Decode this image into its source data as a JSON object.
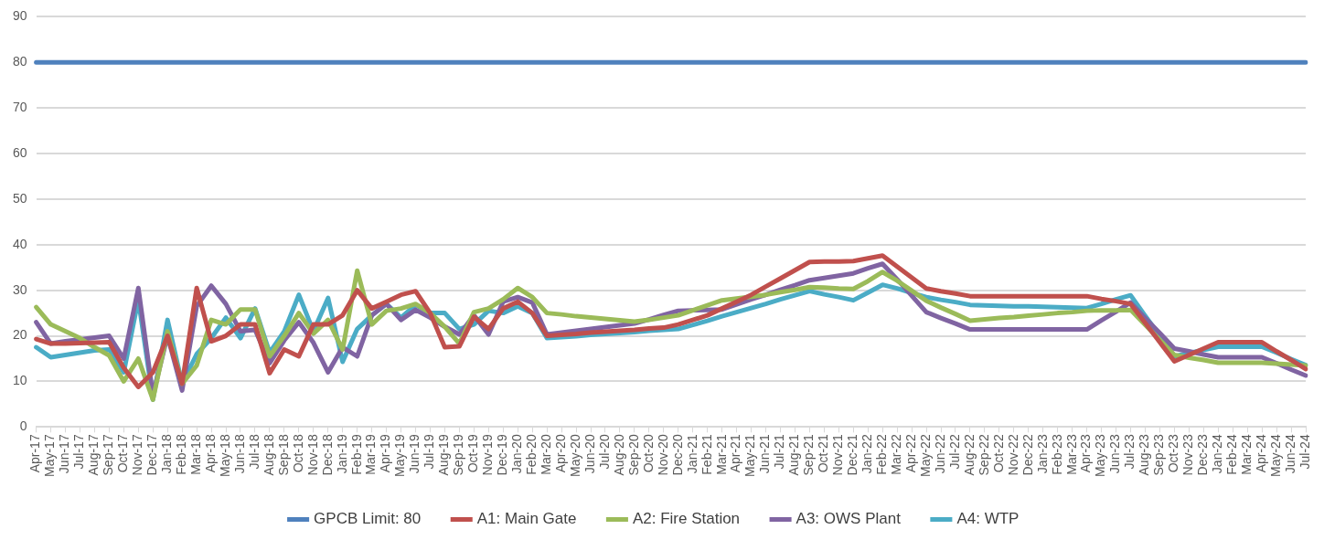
{
  "chart_data": {
    "type": "line",
    "categories": [
      "Apr-17",
      "May-17",
      "Jun-17",
      "Jul-17",
      "Aug-17",
      "Sep-17",
      "Oct-17",
      "Nov-17",
      "Dec-17",
      "Jan-18",
      "Feb-18",
      "Mar-18",
      "Apr-18",
      "May-18",
      "Jun-18",
      "Jul-18",
      "Aug-18",
      "Sep-18",
      "Oct-18",
      "Nov-18",
      "Dec-18",
      "Jan-19",
      "Feb-19",
      "Mar-19",
      "Apr-19",
      "May-19",
      "Jun-19",
      "Jul-19",
      "Aug-19",
      "Sep-19",
      "Oct-19",
      "Nov-19",
      "Dec-19",
      "Jan-20",
      "Feb-20",
      "Mar-20",
      "Apr-20",
      "May-20",
      "Jun-20",
      "Jul-20",
      "Aug-20",
      "Sep-20",
      "Oct-20",
      "Nov-20",
      "Dec-20",
      "Jan-21",
      "Feb-21",
      "Mar-21",
      "Apr-21",
      "May-21",
      "Jun-21",
      "Jul-21",
      "Aug-21",
      "Sep-21",
      "Oct-21",
      "Nov-21",
      "Dec-21",
      "Jan-22",
      "Feb-22",
      "Mar-22",
      "Apr-22",
      "May-22",
      "Jun-22",
      "Jul-22",
      "Aug-22",
      "Sep-22",
      "Oct-22",
      "Nov-22",
      "Dec-22",
      "Jan-23",
      "Feb-23",
      "Mar-23",
      "Apr-23",
      "May-23",
      "Jun-23",
      "Jul-23",
      "Aug-23",
      "Sep-23",
      "Oct-23",
      "Nov-23",
      "Dec-23",
      "Jan-24",
      "Feb-24",
      "Mar-24",
      "Apr-24",
      "May-24",
      "Jun-24",
      "Jul-24"
    ],
    "series": [
      {
        "name": "GPCB Limit: 80",
        "color": "#4f81bd",
        "values": [
          80,
          80,
          80,
          80,
          80,
          80,
          80,
          80,
          80,
          80,
          80,
          80,
          80,
          80,
          80,
          80,
          80,
          80,
          80,
          80,
          80,
          80,
          80,
          80,
          80,
          80,
          80,
          80,
          80,
          80,
          80,
          80,
          80,
          80,
          80,
          80,
          80,
          80,
          80,
          80,
          80,
          80,
          80,
          80,
          80,
          80,
          80,
          80,
          80,
          80,
          80,
          80,
          80,
          80,
          80,
          80,
          80,
          80,
          80,
          80,
          80,
          80,
          80,
          80,
          80,
          80,
          80,
          80,
          80,
          80,
          80,
          80,
          80,
          80,
          80,
          80,
          80,
          80,
          80,
          80,
          80,
          80,
          80,
          80,
          80,
          80,
          80,
          80
        ]
      },
      {
        "name": "A1: Main Gate",
        "color": "#c0504d",
        "values": [
          19.3,
          18.3,
          18.3,
          18.4,
          18.5,
          18.6,
          13,
          8.8,
          12,
          20,
          9.5,
          30.5,
          18.8,
          20,
          22.5,
          22.5,
          11.8,
          17,
          15.5,
          22.5,
          22.5,
          24.5,
          30,
          26,
          27.5,
          29,
          29.8,
          25,
          17.5,
          17.7,
          24.2,
          21.5,
          26,
          27.5,
          25,
          20,
          20.2,
          20.4,
          20.7,
          20.9,
          21.1,
          21.3,
          21.6,
          21.8,
          22.5,
          23.5,
          24.5,
          26,
          27.5,
          29,
          30.8,
          32.6,
          34.4,
          36.2,
          36.3,
          36.3,
          36.4,
          37,
          37.6,
          35.2,
          32.8,
          30.4,
          29.8,
          29.3,
          28.7,
          28.7,
          28.7,
          28.7,
          28.7,
          28.7,
          28.7,
          28.7,
          28.7,
          28.1,
          27.6,
          27,
          22.8,
          18.6,
          14.4,
          15.8,
          17.2,
          18.6,
          18.6,
          18.6,
          18.6,
          16.6,
          14.7,
          12.7
        ]
      },
      {
        "name": "A2: Fire Station",
        "color": "#9bbb59",
        "values": [
          26.3,
          22.5,
          21,
          19.5,
          17.5,
          15.7,
          10,
          15,
          6,
          21,
          9.5,
          13.5,
          23.5,
          22.5,
          25.8,
          25.8,
          15.5,
          20,
          25,
          20.5,
          23.5,
          17,
          34.3,
          22.5,
          25.5,
          26,
          27,
          25,
          22,
          18.3,
          25.2,
          26,
          28,
          30.5,
          28.5,
          25,
          24.7,
          24.3,
          24,
          23.7,
          23.4,
          23.1,
          23.5,
          24,
          24.5,
          25.6,
          26.7,
          27.8,
          28.2,
          28.6,
          29,
          29.6,
          30.1,
          30.7,
          30.6,
          30.4,
          30.3,
          32,
          34,
          32.1,
          29.9,
          27.7,
          26.2,
          24.8,
          23.3,
          23.6,
          23.9,
          24.1,
          24.4,
          24.7,
          25,
          25.2,
          25.5,
          25.6,
          25.6,
          25.7,
          22.4,
          19.1,
          15.8,
          15.2,
          14.7,
          14.1,
          14.1,
          14.1,
          14.1,
          13.9,
          13.7,
          13.5
        ]
      },
      {
        "name": "A3: OWS Plant",
        "color": "#8064a2",
        "values": [
          23,
          18.3,
          18.8,
          19.2,
          19.6,
          20,
          15,
          30.5,
          7,
          20,
          8,
          26.5,
          31,
          27,
          21,
          21.3,
          14,
          19,
          23,
          18.5,
          12,
          17.5,
          15.5,
          24.5,
          27,
          23.5,
          25.7,
          24,
          22,
          20.3,
          24.5,
          20.3,
          27.5,
          28.5,
          27.3,
          20.3,
          20.7,
          21.1,
          21.5,
          21.9,
          22.3,
          22.7,
          23.6,
          24.6,
          25.5,
          25.6,
          25.7,
          25.8,
          26.9,
          28,
          29,
          30.1,
          31.1,
          32.2,
          32.7,
          33.2,
          33.7,
          34.8,
          35.8,
          32.4,
          28.8,
          25.2,
          23.9,
          22.7,
          21.4,
          21.4,
          21.4,
          21.4,
          21.4,
          21.4,
          21.4,
          21.4,
          21.4,
          23.4,
          25.3,
          27.3,
          23.9,
          20.6,
          17.2,
          16.6,
          15.9,
          15.3,
          15.3,
          15.3,
          15.3,
          14,
          12.6,
          11.3
        ]
      },
      {
        "name": "A4: WTP",
        "color": "#4bacc6",
        "values": [
          17.5,
          15.3,
          15.8,
          16.3,
          16.8,
          17,
          12,
          28,
          6,
          23.5,
          9.5,
          16,
          19.5,
          24,
          19.5,
          26,
          16.3,
          21,
          29,
          21,
          28.3,
          14.3,
          21.5,
          24.5,
          27,
          24,
          26.8,
          25,
          25,
          21.5,
          22.5,
          25.5,
          25,
          26.5,
          25,
          19.5,
          19.7,
          19.9,
          20.2,
          20.4,
          20.6,
          20.8,
          21.1,
          21.3,
          21.5,
          22.4,
          23.3,
          24.3,
          25.2,
          26.1,
          27,
          28,
          28.9,
          29.8,
          29.1,
          28.5,
          27.8,
          29.5,
          31.2,
          30.4,
          29.4,
          28.5,
          27.9,
          27.4,
          26.8,
          26.7,
          26.6,
          26.5,
          26.5,
          26.4,
          26.3,
          26.2,
          26.1,
          27,
          28,
          28.9,
          24.4,
          20,
          15.5,
          16.2,
          16.9,
          17.6,
          17.6,
          17.6,
          17.6,
          16.3,
          14.9,
          13.6
        ]
      }
    ],
    "ylim": [
      0,
      90
    ],
    "yticks": [
      0,
      10,
      20,
      30,
      40,
      50,
      60,
      70,
      80,
      90
    ],
    "grid": "y",
    "legend": "bottom",
    "marker": "none",
    "line_style": "solid"
  }
}
